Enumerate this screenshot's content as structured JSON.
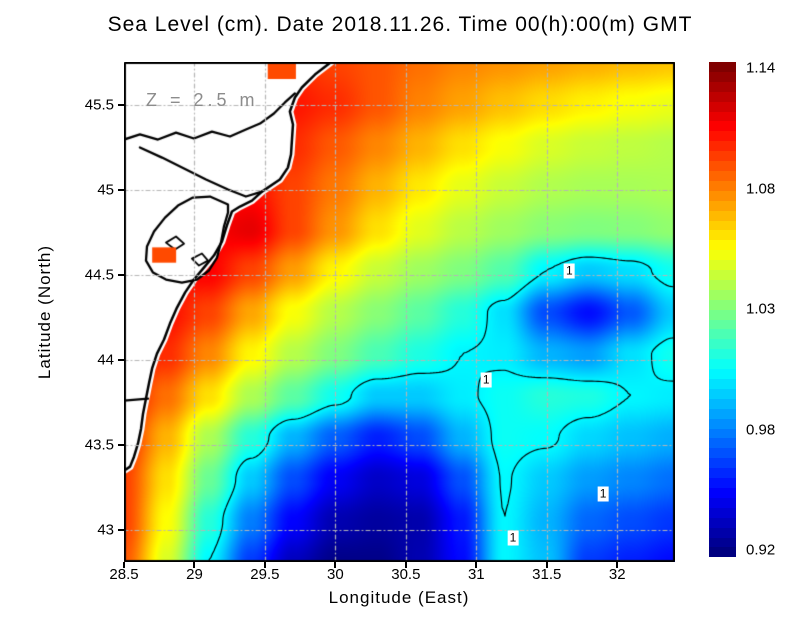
{
  "title": "Sea Level (cm). Date 2018.11.26. Time 00(h):00(m) GMT",
  "annotation": {
    "text": "Z = 2.5 m"
  },
  "axes": {
    "x": {
      "label": "Longitude (East)",
      "min": 28.5,
      "max": 32.41,
      "ticks": [
        {
          "value": 28.5,
          "label": "28.5"
        },
        {
          "value": 29,
          "label": "29"
        },
        {
          "value": 29.5,
          "label": "29.5"
        },
        {
          "value": 30,
          "label": "30"
        },
        {
          "value": 30.5,
          "label": "30.5"
        },
        {
          "value": 31,
          "label": "31"
        },
        {
          "value": 31.5,
          "label": "31.5"
        },
        {
          "value": 32,
          "label": "32"
        }
      ]
    },
    "y": {
      "label": "Latitude (North)",
      "min": 42.81,
      "max": 45.75,
      "ticks": [
        {
          "value": 45.5,
          "label": "45.5"
        },
        {
          "value": 45,
          "label": "45"
        },
        {
          "value": 44.5,
          "label": "44.5"
        },
        {
          "value": 44,
          "label": "44"
        },
        {
          "value": 43.5,
          "label": "43.5"
        },
        {
          "value": 43,
          "label": "43"
        }
      ]
    }
  },
  "colorbar": {
    "colormap": "jet",
    "vmin": 0.917,
    "vmax": 1.143,
    "bands": 50,
    "ticks": [
      "1.14",
      "1.08",
      "1.03",
      "0.98",
      "0.92"
    ]
  },
  "chart_data": {
    "type": "heatmap",
    "title": "Sea Level (cm). Date 2018.11.26. Time 00(h):00(m) GMT",
    "xlabel": "Longitude (East)",
    "ylabel": "Latitude (North)",
    "units": "cm",
    "x": [
      28.5,
      28.8,
      29.1,
      29.4,
      29.7,
      30.0,
      30.3,
      30.6,
      30.9,
      31.2,
      31.5,
      31.8,
      32.1,
      32.4
    ],
    "y": [
      45.75,
      45.504,
      45.258,
      45.013,
      44.767,
      44.521,
      44.275,
      44.029,
      43.783,
      43.538,
      43.292,
      43.046,
      42.8
    ],
    "values": [
      [
        1.1,
        1.1,
        1.1,
        1.1,
        1.105,
        1.1,
        1.096,
        1.09,
        1.085,
        1.082,
        1.079,
        1.076,
        1.073,
        1.071
      ],
      [
        1.1,
        1.1,
        1.1,
        1.105,
        1.11,
        1.105,
        1.096,
        1.086,
        1.079,
        1.072,
        1.066,
        1.061,
        1.057,
        1.054
      ],
      [
        1.1,
        1.1,
        1.105,
        1.11,
        1.105,
        1.095,
        1.085,
        1.075,
        1.065,
        1.057,
        1.05,
        1.046,
        1.044,
        1.042
      ],
      [
        1.105,
        1.105,
        1.11,
        1.112,
        1.1,
        1.088,
        1.075,
        1.063,
        1.053,
        1.046,
        1.041,
        1.039,
        1.039,
        1.04
      ],
      [
        1.11,
        1.11,
        1.115,
        1.12,
        1.1,
        1.082,
        1.065,
        1.052,
        1.043,
        1.037,
        1.032,
        1.03,
        1.031,
        1.034
      ],
      [
        1.112,
        1.113,
        1.115,
        1.1,
        1.08,
        1.06,
        1.046,
        1.037,
        1.03,
        1.02,
        1.0,
        0.99,
        0.995,
        1.005
      ],
      [
        1.113,
        1.112,
        1.1,
        1.078,
        1.057,
        1.042,
        1.032,
        1.022,
        1.01,
        0.995,
        0.962,
        0.948,
        0.965,
        0.99
      ],
      [
        1.112,
        1.105,
        1.085,
        1.06,
        1.042,
        1.03,
        1.018,
        1.008,
        1.0,
        0.998,
        0.985,
        0.98,
        0.995,
        1.005
      ],
      [
        1.11,
        1.09,
        1.065,
        1.04,
        1.022,
        1.005,
        0.99,
        0.99,
        0.998,
        1.004,
        1.01,
        1.008,
        1.0,
        0.998
      ],
      [
        1.105,
        1.075,
        1.04,
        1.01,
        0.985,
        0.966,
        0.952,
        0.962,
        0.985,
        1.004,
        1.002,
        0.993,
        0.988,
        0.984
      ],
      [
        1.1,
        1.065,
        1.025,
        0.99,
        0.962,
        0.943,
        0.933,
        0.938,
        0.963,
        1.001,
        0.99,
        0.98,
        0.975,
        0.97
      ],
      [
        1.1,
        1.058,
        1.01,
        0.973,
        0.945,
        0.928,
        0.924,
        0.927,
        0.95,
        1.0,
        0.985,
        0.968,
        0.962,
        0.957
      ],
      [
        1.095,
        1.05,
        1.0,
        0.958,
        0.931,
        0.919,
        0.919,
        0.928,
        0.947,
        1.0,
        0.988,
        0.958,
        0.952,
        0.947
      ]
    ],
    "contour_level": 1,
    "contour_label": "1",
    "contour_label_positions": [
      [
        31.66,
        44.52
      ],
      [
        31.07,
        43.88
      ],
      [
        31.9,
        43.21
      ],
      [
        31.26,
        42.95
      ]
    ]
  },
  "map": {
    "coastline": [
      [
        29.975,
        45.753
      ],
      [
        29.855,
        45.676
      ],
      [
        29.762,
        45.6
      ],
      [
        29.713,
        45.541
      ],
      [
        29.677,
        45.459
      ],
      [
        29.699,
        45.382
      ],
      [
        29.692,
        45.294
      ],
      [
        29.685,
        45.206
      ],
      [
        29.663,
        45.129
      ],
      [
        29.606,
        45.059
      ],
      [
        29.479,
        44.988
      ],
      [
        29.408,
        44.935
      ],
      [
        29.323,
        44.9
      ],
      [
        29.266,
        44.871
      ],
      [
        29.23,
        44.788
      ],
      [
        29.195,
        44.694
      ],
      [
        29.138,
        44.612
      ],
      [
        29.067,
        44.541
      ],
      [
        28.996,
        44.471
      ],
      [
        28.933,
        44.394
      ],
      [
        28.876,
        44.306
      ],
      [
        28.826,
        44.212
      ],
      [
        28.784,
        44.118
      ],
      [
        28.734,
        44.035
      ],
      [
        28.699,
        43.947
      ],
      [
        28.677,
        43.859
      ],
      [
        28.656,
        43.771
      ],
      [
        28.635,
        43.682
      ],
      [
        28.621,
        43.594
      ],
      [
        28.599,
        43.506
      ],
      [
        28.571,
        43.429
      ],
      [
        28.543,
        43.371
      ],
      [
        28.5,
        43.347
      ]
    ],
    "lagoon": [
      [
        29.238,
        44.912
      ],
      [
        29.11,
        44.959
      ],
      [
        28.989,
        44.953
      ],
      [
        28.883,
        44.906
      ],
      [
        28.791,
        44.835
      ],
      [
        28.713,
        44.753
      ],
      [
        28.663,
        44.665
      ],
      [
        28.656,
        44.582
      ],
      [
        28.706,
        44.512
      ],
      [
        28.798,
        44.471
      ],
      [
        28.911,
        44.453
      ],
      [
        29.018,
        44.471
      ],
      [
        29.103,
        44.524
      ],
      [
        29.16,
        44.6
      ],
      [
        29.188,
        44.688
      ],
      [
        29.209,
        44.782
      ],
      [
        29.238,
        44.865
      ]
    ],
    "rivers": [
      [
        [
          28.5,
          45.294
        ],
        [
          28.613,
          45.324
        ],
        [
          28.741,
          45.294
        ],
        [
          28.869,
          45.335
        ],
        [
          28.996,
          45.3
        ],
        [
          29.124,
          45.341
        ],
        [
          29.252,
          45.312
        ],
        [
          29.365,
          45.353
        ],
        [
          29.465,
          45.388
        ],
        [
          29.564,
          45.447
        ],
        [
          29.642,
          45.512
        ],
        [
          29.713,
          45.565
        ]
      ],
      [
        [
          28.613,
          45.247
        ],
        [
          28.77,
          45.188
        ],
        [
          28.926,
          45.124
        ],
        [
          29.082,
          45.059
        ],
        [
          29.238,
          45.0
        ],
        [
          29.365,
          44.959
        ],
        [
          29.479,
          44.988
        ]
      ],
      [
        [
          28.5,
          43.759
        ],
        [
          28.67,
          43.771
        ]
      ]
    ],
    "islands": [
      [
        [
          28.798,
          44.688
        ],
        [
          28.869,
          44.724
        ],
        [
          28.926,
          44.682
        ],
        [
          28.862,
          44.647
        ]
      ],
      [
        [
          28.982,
          44.594
        ],
        [
          29.053,
          44.624
        ],
        [
          29.096,
          44.582
        ],
        [
          29.032,
          44.553
        ]
      ]
    ],
    "water_patches": [
      {
        "lon1": 29.52,
        "lat1": 45.753,
        "lon2": 29.72,
        "lat2": 45.65,
        "color": "#ff4a00"
      },
      {
        "lon1": 28.7,
        "lat1": 44.66,
        "lon2": 28.87,
        "lat2": 44.57,
        "color": "#ff4a00"
      }
    ]
  },
  "colors": {
    "grid": "#b5b5b5",
    "annotation": "#8c8c8c",
    "land": "#ffffff",
    "coastline": "#000000",
    "frame": "#000000"
  }
}
